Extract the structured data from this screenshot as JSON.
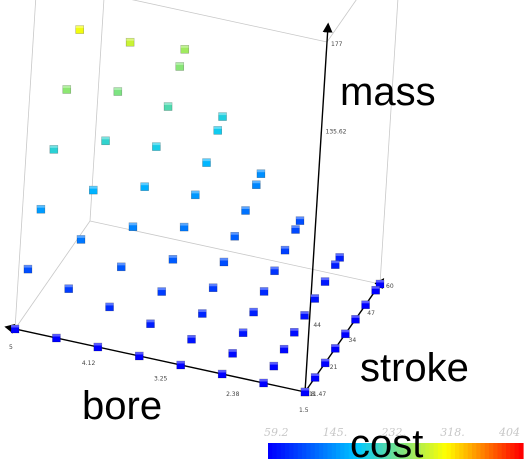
{
  "chart_data": {
    "type": "scatter",
    "projection": "3d",
    "axes": {
      "x": {
        "label": "bore",
        "ticks": [
          "5",
          "4.12",
          "3.25",
          "2.38",
          "1.5"
        ],
        "range": [
          1.5,
          5
        ]
      },
      "y": {
        "label": "stroke",
        "ticks": [
          "8",
          "21",
          "34",
          "47",
          "60"
        ],
        "range": [
          8,
          60
        ]
      },
      "z": {
        "label": "mass",
        "ticks": [
          "11.47",
          "44",
          "135.62",
          "177"
        ],
        "range": [
          11.47,
          177
        ]
      }
    },
    "colorbar": {
      "label": "cost",
      "ticks": [
        "59.2",
        "145.",
        "232.",
        "318.",
        "404"
      ],
      "range": [
        59.2,
        404
      ],
      "colors": [
        "#0000ff",
        "#00c8ff",
        "#ffff00",
        "#ff0000"
      ]
    },
    "points_note": "points sampled on a grid of bore x stroke; color = cost",
    "points": [
      {
        "bore": 1.5,
        "stroke": 8,
        "mass": 11.47,
        "cost": 59.2
      },
      {
        "bore": 5,
        "stroke": 60,
        "mass": 177,
        "cost": 404
      }
    ]
  }
}
